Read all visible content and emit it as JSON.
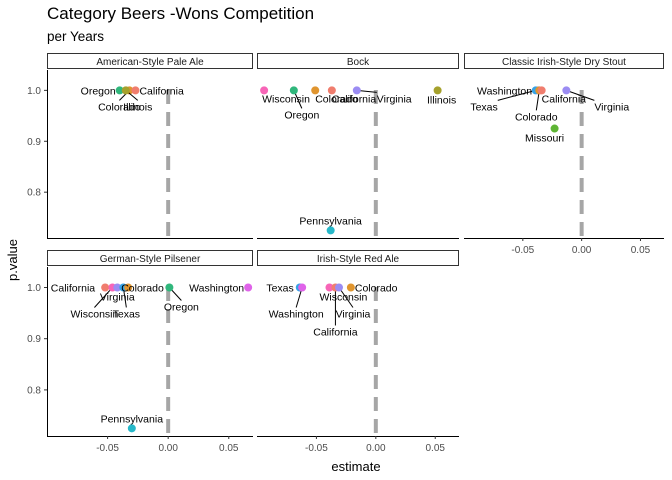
{
  "title": "Category Beers -Wons  Competition",
  "subtitle": "per Years",
  "chart_data": {
    "type": "scatter",
    "xlabel": "estimate",
    "ylabel": "p.value",
    "xlim": [
      -0.1,
      0.07
    ],
    "ylim": [
      0.71,
      1.04
    ],
    "x_ticks": [
      -0.05,
      0.0,
      0.05
    ],
    "x_tick_labels": [
      "-0.05",
      "0.00",
      "0.05"
    ],
    "y_ticks": [
      0.8,
      0.9,
      1.0
    ],
    "y_tick_labels": [
      "0.8",
      "0.9",
      "1.0"
    ],
    "reference_line_x": 0,
    "grid": false,
    "legend": "none",
    "state_colors": {
      "California": "#f07d6e",
      "Colorado": "#e0952f",
      "Illinois": "#a5a12c",
      "Missouri": "#5eb534",
      "Oregon": "#30b77c",
      "Pennsylvania": "#26b8c9",
      "Texas": "#36a3e6",
      "Virginia": "#9b8cf3",
      "Washington": "#df63e9",
      "Wisconsin": "#f765b7"
    },
    "panels": [
      {
        "name": "American-Style Pale Ale",
        "points": [
          {
            "state": "Oregon",
            "x": -0.04,
            "y": 1.0
          },
          {
            "state": "Colorado",
            "x": -0.032,
            "y": 1.0
          },
          {
            "state": "Illinois",
            "x": -0.035,
            "y": 1.0
          },
          {
            "state": "California",
            "x": -0.027,
            "y": 1.0
          }
        ]
      },
      {
        "name": "Bock",
        "points": [
          {
            "state": "Wisconsin",
            "x": -0.094,
            "y": 1.0
          },
          {
            "state": "Oregon",
            "x": -0.069,
            "y": 1.0
          },
          {
            "state": "Colorado",
            "x": -0.051,
            "y": 1.0
          },
          {
            "state": "California",
            "x": -0.037,
            "y": 1.0
          },
          {
            "state": "Virginia",
            "x": -0.016,
            "y": 1.0
          },
          {
            "state": "Illinois",
            "x": 0.052,
            "y": 1.0
          },
          {
            "state": "Pennsylvania",
            "x": -0.038,
            "y": 0.725
          }
        ]
      },
      {
        "name": "Classic Irish-Style Dry Stout",
        "points": [
          {
            "state": "Washington",
            "x": -0.037,
            "y": 1.0
          },
          {
            "state": "Texas",
            "x": -0.039,
            "y": 1.0
          },
          {
            "state": "Colorado",
            "x": -0.036,
            "y": 1.0
          },
          {
            "state": "California",
            "x": -0.034,
            "y": 1.0
          },
          {
            "state": "Virginia",
            "x": -0.013,
            "y": 1.0
          },
          {
            "state": "Missouri",
            "x": -0.023,
            "y": 0.925
          }
        ]
      },
      {
        "name": "German-Style Pilsener",
        "points": [
          {
            "state": "California",
            "x": -0.052,
            "y": 1.0
          },
          {
            "state": "Wisconsin",
            "x": -0.046,
            "y": 1.0
          },
          {
            "state": "Virginia",
            "x": -0.042,
            "y": 1.0
          },
          {
            "state": "Texas",
            "x": -0.037,
            "y": 1.0
          },
          {
            "state": "Colorado",
            "x": -0.033,
            "y": 1.0
          },
          {
            "state": "Oregon",
            "x": 0.001,
            "y": 1.0
          },
          {
            "state": "Washington",
            "x": 0.066,
            "y": 1.0
          },
          {
            "state": "Pennsylvania",
            "x": -0.03,
            "y": 0.725
          }
        ]
      },
      {
        "name": "Irish-Style Red Ale",
        "points": [
          {
            "state": "Texas",
            "x": -0.064,
            "y": 1.0
          },
          {
            "state": "Washington",
            "x": -0.062,
            "y": 1.0
          },
          {
            "state": "Wisconsin",
            "x": -0.039,
            "y": 1.0
          },
          {
            "state": "California",
            "x": -0.034,
            "y": 1.0
          },
          {
            "state": "Virginia",
            "x": -0.031,
            "y": 1.0
          },
          {
            "state": "Colorado",
            "x": -0.021,
            "y": 1.0
          }
        ]
      }
    ]
  }
}
